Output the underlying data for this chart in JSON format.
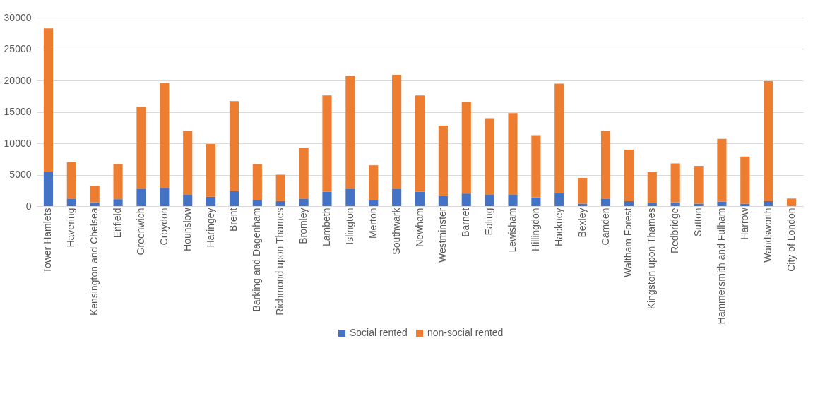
{
  "chart_data": {
    "type": "bar",
    "stacked": true,
    "categories": [
      "Tower Hamlets",
      "Havering",
      "Kensington and Chelsea",
      "Enfield",
      "Greenwich",
      "Croydon",
      "Hounslow",
      "Haringey",
      "Brent",
      "Barking and Dagenham",
      "Richmond upon Thames",
      "Bromley",
      "Lambeth",
      "Islington",
      "Merton",
      "Southwark",
      "Newham",
      "Westminster",
      "Barnet",
      "Ealing",
      "Lewisham",
      "Hillingdon",
      "Hackney",
      "Bexley",
      "Camden",
      "Waltham Forest",
      "Kingston upon Thames",
      "Redbridge",
      "Sutton",
      "Hammersmith and Fulham",
      "Harrow",
      "Wandsworth",
      "City of London"
    ],
    "series": [
      {
        "name": "Social rented",
        "color": "#4472c4",
        "values": [
          5500,
          1200,
          600,
          1100,
          2700,
          2900,
          1800,
          1500,
          2400,
          1000,
          800,
          1200,
          2300,
          2700,
          900,
          2700,
          2300,
          1600,
          2000,
          1800,
          1800,
          1400,
          2100,
          400,
          1200,
          800,
          500,
          600,
          400,
          700,
          400,
          800,
          0
        ]
      },
      {
        "name": "non-social rented",
        "color": "#ed7d31",
        "values": [
          22800,
          5800,
          2600,
          5600,
          13100,
          16700,
          10200,
          8400,
          14300,
          5700,
          4200,
          8100,
          15300,
          18100,
          5600,
          18200,
          15300,
          11200,
          14600,
          12200,
          13000,
          9900,
          17400,
          4100,
          10800,
          8200,
          4900,
          6200,
          6000,
          10000,
          7500,
          19100,
          1200
        ]
      }
    ],
    "ylim": [
      0,
      30000
    ],
    "yticks": [
      0,
      5000,
      10000,
      15000,
      20000,
      25000,
      30000
    ],
    "grid": "y",
    "legend": "bottom"
  }
}
